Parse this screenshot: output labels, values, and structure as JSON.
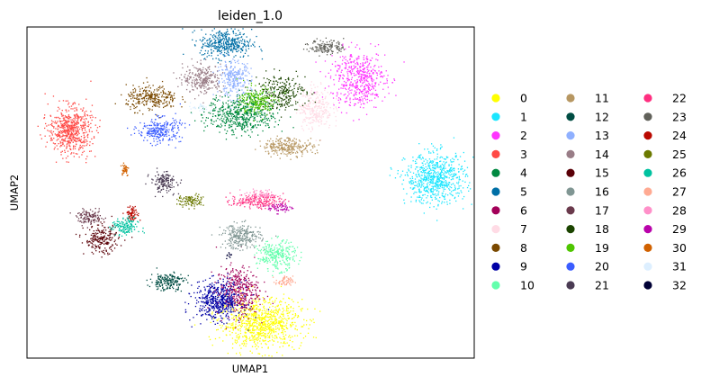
{
  "chart_data": {
    "type": "scatter",
    "title": "leiden_1.0",
    "xlabel": "UMAP1",
    "ylabel": "UMAP2",
    "grid": false,
    "x_ticks": [],
    "y_ticks": [],
    "legend": {
      "placement": "right",
      "columns": 3
    },
    "series": [
      {
        "name": "0",
        "color": "#ffff00",
        "clusters": [
          {
            "center": [
              0.55,
              0.11
            ],
            "spread": [
              0.095,
              0.07
            ],
            "n": 900
          }
        ]
      },
      {
        "name": "1",
        "color": "#1ce6ff",
        "clusters": [
          {
            "center": [
              1.0,
              0.56
            ],
            "spread": [
              0.07,
              0.07
            ],
            "n": 700
          }
        ]
      },
      {
        "name": "2",
        "color": "#ff34ff",
        "clusters": [
          {
            "center": [
              0.8,
              0.87
            ],
            "spread": [
              0.065,
              0.08
            ],
            "n": 500
          }
        ]
      },
      {
        "name": "3",
        "color": "#ff4a46",
        "clusters": [
          {
            "center": [
              0.06,
              0.71
            ],
            "spread": [
              0.05,
              0.065
            ],
            "n": 600
          }
        ]
      },
      {
        "name": "4",
        "color": "#008941",
        "clusters": [
          {
            "center": [
              0.5,
              0.76
            ],
            "spread": [
              0.08,
              0.055
            ],
            "n": 550
          }
        ]
      },
      {
        "name": "5",
        "color": "#006fa6",
        "clusters": [
          {
            "center": [
              0.46,
              0.98
            ],
            "spread": [
              0.06,
              0.04
            ],
            "n": 400
          }
        ]
      },
      {
        "name": "6",
        "color": "#a30059",
        "clusters": [
          {
            "center": [
              0.49,
              0.21
            ],
            "spread": [
              0.05,
              0.07
            ],
            "n": 400
          }
        ]
      },
      {
        "name": "7",
        "color": "#ffdbe5",
        "clusters": [
          {
            "center": [
              0.69,
              0.78
            ],
            "spread": [
              0.04,
              0.06
            ],
            "n": 280
          }
        ]
      },
      {
        "name": "8",
        "color": "#7a4900",
        "clusters": [
          {
            "center": [
              0.27,
              0.81
            ],
            "spread": [
              0.06,
              0.035
            ],
            "n": 280
          }
        ]
      },
      {
        "name": "9",
        "color": "#0000a6",
        "clusters": [
          {
            "center": [
              0.44,
              0.18
            ],
            "spread": [
              0.055,
              0.055
            ],
            "n": 500
          }
        ]
      },
      {
        "name": "10",
        "color": "#63ffac",
        "clusters": [
          {
            "center": [
              0.59,
              0.32
            ],
            "spread": [
              0.045,
              0.04
            ],
            "n": 280
          }
        ]
      },
      {
        "name": "11",
        "color": "#b79762",
        "clusters": [
          {
            "center": [
              0.62,
              0.66
            ],
            "spread": [
              0.06,
              0.025
            ],
            "n": 260
          }
        ]
      },
      {
        "name": "12",
        "color": "#004d43",
        "clusters": [
          {
            "center": [
              0.31,
              0.24
            ],
            "spread": [
              0.04,
              0.025
            ],
            "n": 180
          }
        ]
      },
      {
        "name": "13",
        "color": "#8fb0ff",
        "clusters": [
          {
            "center": [
              0.48,
              0.87
            ],
            "spread": [
              0.04,
              0.05
            ],
            "n": 260
          }
        ]
      },
      {
        "name": "14",
        "color": "#997d87",
        "clusters": [
          {
            "center": [
              0.4,
              0.87
            ],
            "spread": [
              0.045,
              0.04
            ],
            "n": 260
          }
        ]
      },
      {
        "name": "15",
        "color": "#5a0007",
        "clusters": [
          {
            "center": [
              0.14,
              0.37
            ],
            "spread": [
              0.04,
              0.04
            ],
            "n": 220
          }
        ]
      },
      {
        "name": "16",
        "color": "#809693",
        "clusters": [
          {
            "center": [
              0.5,
              0.38
            ],
            "spread": [
              0.045,
              0.035
            ],
            "n": 260
          }
        ]
      },
      {
        "name": "17",
        "color": "#6a3a4c",
        "clusters": [
          {
            "center": [
              0.11,
              0.44
            ],
            "spread": [
              0.03,
              0.02
            ],
            "n": 120
          }
        ]
      },
      {
        "name": "18",
        "color": "#1b4400",
        "clusters": [
          {
            "center": [
              0.6,
              0.83
            ],
            "spread": [
              0.06,
              0.05
            ],
            "n": 260
          }
        ]
      },
      {
        "name": "19",
        "color": "#4fc601",
        "clusters": [
          {
            "center": [
              0.54,
              0.8
            ],
            "spread": [
              0.04,
              0.04
            ],
            "n": 200
          }
        ]
      },
      {
        "name": "20",
        "color": "#3b5dff",
        "clusters": [
          {
            "center": [
              0.29,
              0.71
            ],
            "spread": [
              0.05,
              0.035
            ],
            "n": 260
          }
        ]
      },
      {
        "name": "21",
        "color": "#4a3b53",
        "clusters": [
          {
            "center": [
              0.3,
              0.55
            ],
            "spread": [
              0.03,
              0.03
            ],
            "n": 150
          }
        ]
      },
      {
        "name": "22",
        "color": "#ff2f80",
        "clusters": [
          {
            "center": [
              0.54,
              0.49
            ],
            "spread": [
              0.06,
              0.02
            ],
            "n": 200
          }
        ]
      },
      {
        "name": "23",
        "color": "#61615a",
        "clusters": [
          {
            "center": [
              0.72,
              0.97
            ],
            "spread": [
              0.04,
              0.02
            ],
            "n": 150
          }
        ]
      },
      {
        "name": "24",
        "color": "#ba0900",
        "clusters": [
          {
            "center": [
              0.22,
              0.45
            ],
            "spread": [
              0.015,
              0.02
            ],
            "n": 80
          }
        ]
      },
      {
        "name": "25",
        "color": "#6b7900",
        "clusters": [
          {
            "center": [
              0.37,
              0.49
            ],
            "spread": [
              0.03,
              0.018
            ],
            "n": 100
          }
        ]
      },
      {
        "name": "26",
        "color": "#00c2a0",
        "clusters": [
          {
            "center": [
              0.2,
              0.41
            ],
            "spread": [
              0.03,
              0.025
            ],
            "n": 150
          }
        ]
      },
      {
        "name": "27",
        "color": "#ffaa92",
        "clusters": [
          {
            "center": [
              0.61,
              0.24
            ],
            "spread": [
              0.02,
              0.015
            ],
            "n": 60
          }
        ]
      },
      {
        "name": "28",
        "color": "#ff90c9",
        "clusters": [
          {
            "center": [
              0.55,
              0.51
            ],
            "spread": [
              0.04,
              0.015
            ],
            "n": 60
          }
        ]
      },
      {
        "name": "29",
        "color": "#b903aa",
        "clusters": [
          {
            "center": [
              0.6,
              0.47
            ],
            "spread": [
              0.03,
              0.015
            ],
            "n": 60
          }
        ]
      },
      {
        "name": "30",
        "color": "#d16100",
        "clusters": [
          {
            "center": [
              0.2,
              0.59
            ],
            "spread": [
              0.01,
              0.02
            ],
            "n": 40
          }
        ]
      },
      {
        "name": "31",
        "color": "#ddefff",
        "clusters": [
          {
            "center": [
              0.4,
              0.78
            ],
            "spread": [
              0.03,
              0.015
            ],
            "n": 40
          }
        ]
      },
      {
        "name": "32",
        "color": "#000035",
        "clusters": [
          {
            "center": [
              0.47,
              0.32
            ],
            "spread": [
              0.008,
              0.01
            ],
            "n": 10
          }
        ]
      }
    ]
  }
}
